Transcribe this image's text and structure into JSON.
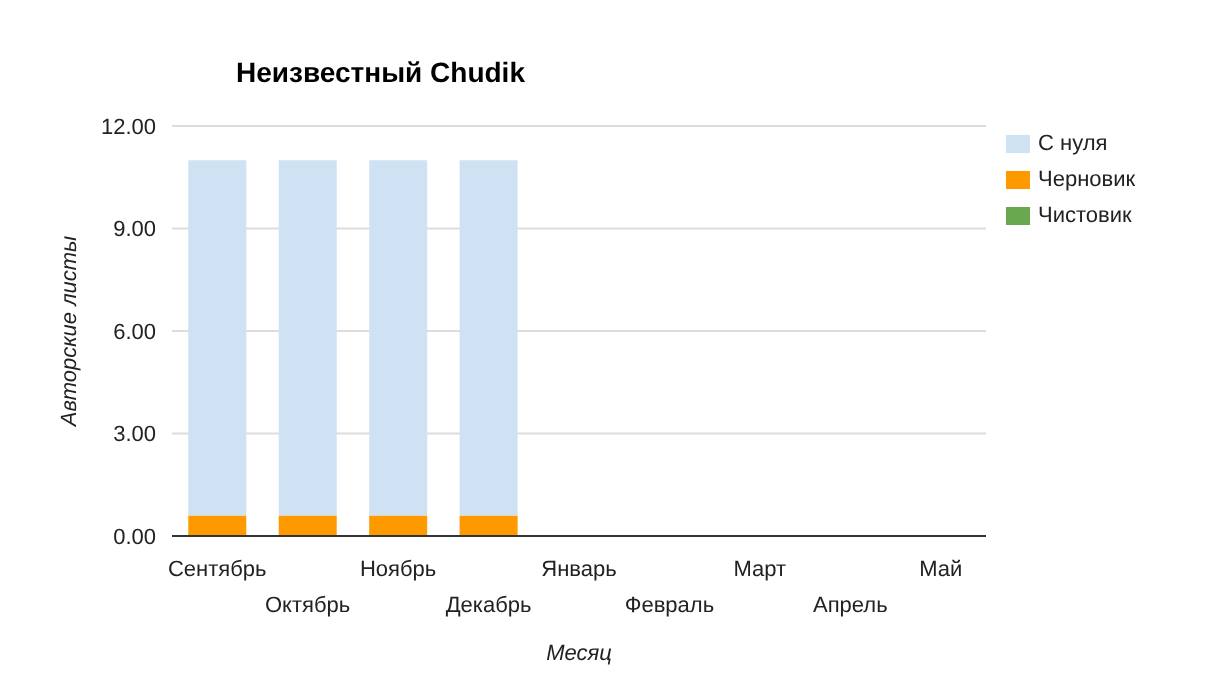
{
  "chart_data": {
    "type": "bar",
    "title": "Неизвестный Chudik",
    "xlabel": "Месяц",
    "ylabel": "Авторские листы",
    "categories": [
      "Сентябрь",
      "Октябрь",
      "Ноябрь",
      "Декабрь",
      "Январь",
      "Февраль",
      "Март",
      "Апрель",
      "Май"
    ],
    "stacked": true,
    "series": [
      {
        "name": "Черновик",
        "color": "#ff9900",
        "values": [
          0.6,
          0.6,
          0.6,
          0.6,
          0,
          0,
          0,
          0,
          0
        ]
      },
      {
        "name": "С нуля",
        "color": "#cfe2f3",
        "values": [
          10.4,
          10.4,
          10.4,
          10.4,
          0,
          0,
          0,
          0,
          0
        ]
      },
      {
        "name": "Чистовик",
        "color": "#6aa84f",
        "values": [
          0,
          0,
          0,
          0,
          0,
          0,
          0,
          0,
          0
        ]
      }
    ],
    "ylim": [
      0,
      12
    ],
    "yticks": [
      {
        "value": 0,
        "label": "0.00"
      },
      {
        "value": 3,
        "label": "3.00"
      },
      {
        "value": 6,
        "label": "6.00"
      },
      {
        "value": 9,
        "label": "9.00"
      },
      {
        "value": 12,
        "label": "12.00"
      }
    ],
    "grid": "y",
    "legend": "top right"
  }
}
